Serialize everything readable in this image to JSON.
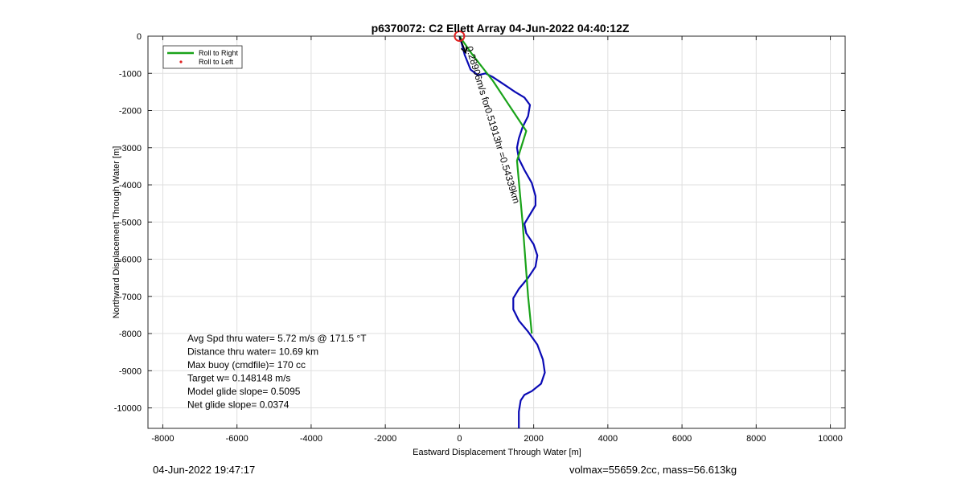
{
  "chart_data": {
    "type": "line",
    "title": "p6370072: C2 Ellett Array 04-Jun-2022 04:40:12Z",
    "xlabel": "Eastward Displacement Through Water [m]",
    "ylabel": "Northward Displacement Through Water [m]",
    "xlim": [
      -8400,
      10400
    ],
    "ylim": [
      -10550,
      0
    ],
    "xticks": [
      -8000,
      -6000,
      -4000,
      -2000,
      0,
      2000,
      4000,
      6000,
      8000,
      10000
    ],
    "yticks": [
      0,
      -1000,
      -2000,
      -3000,
      -4000,
      -5000,
      -6000,
      -7000,
      -8000,
      -9000,
      -10000
    ],
    "grid": true,
    "legend_position": "top-left",
    "legend": [
      {
        "label": "Roll to Right",
        "color": "#1aa31a",
        "marker": "line"
      },
      {
        "label": "Roll to Left",
        "color": "#e02020",
        "marker": "dot"
      }
    ],
    "series": [
      {
        "name": "",
        "color": "#0a0ab4",
        "points": [
          [
            0,
            0
          ],
          [
            60,
            -200
          ],
          [
            140,
            -500
          ],
          [
            300,
            -900
          ],
          [
            500,
            -1050
          ],
          [
            700,
            -1000
          ],
          [
            900,
            -1100
          ],
          [
            1200,
            -1300
          ],
          [
            1500,
            -1500
          ],
          [
            1750,
            -1650
          ],
          [
            1900,
            -1850
          ],
          [
            1850,
            -2150
          ],
          [
            1700,
            -2450
          ],
          [
            1600,
            -2750
          ],
          [
            1550,
            -3000
          ],
          [
            1600,
            -3300
          ],
          [
            1750,
            -3600
          ],
          [
            1950,
            -3950
          ],
          [
            2050,
            -4300
          ],
          [
            2050,
            -4550
          ],
          [
            1900,
            -4800
          ],
          [
            1750,
            -5050
          ],
          [
            1800,
            -5300
          ],
          [
            2000,
            -5600
          ],
          [
            2100,
            -5900
          ],
          [
            2050,
            -6200
          ],
          [
            1850,
            -6500
          ],
          [
            1600,
            -6800
          ],
          [
            1450,
            -7050
          ],
          [
            1450,
            -7350
          ],
          [
            1600,
            -7650
          ],
          [
            1850,
            -7950
          ],
          [
            2100,
            -8300
          ],
          [
            2250,
            -8700
          ],
          [
            2300,
            -9050
          ],
          [
            2200,
            -9350
          ],
          [
            1950,
            -9550
          ],
          [
            1750,
            -9650
          ],
          [
            1650,
            -9800
          ],
          [
            1600,
            -10100
          ],
          [
            1600,
            -10550
          ]
        ]
      },
      {
        "name": "Roll to Right",
        "color": "#1aa31a",
        "points": [
          [
            0,
            0
          ],
          [
            350,
            -500
          ],
          [
            900,
            -1200
          ],
          [
            1300,
            -1800
          ],
          [
            1800,
            -2550
          ],
          [
            1550,
            -3350
          ],
          [
            1700,
            -5000
          ],
          [
            1850,
            -7000
          ],
          [
            1950,
            -8000
          ]
        ]
      }
    ],
    "markers": [
      {
        "x": 0,
        "y": 0,
        "label": "start-circle",
        "color": "#e02020"
      }
    ],
    "annotations": [
      {
        "text": "Avg Spd thru water=  5.72 m/s @ 171.5 °T"
      },
      {
        "text": "Distance thru water= 10.69 km"
      },
      {
        "text": "Max buoy (cmdfile)= 170 cc"
      },
      {
        "text": "Target w= 0.148148 m/s"
      },
      {
        "text": "Model glide slope= 0.5095"
      },
      {
        "text": "Net glide slope= 0.0374"
      }
    ],
    "rotated_label": "0.28906m/s for0.51913hr =0.54339km",
    "current_arrow": {
      "from": [
        0,
        0
      ],
      "to": [
        170,
        -450
      ]
    }
  },
  "footer": {
    "left_timestamp": "04-Jun-2022 19:47:17",
    "right_info": "volmax=55659.2cc, mass=56.613kg"
  }
}
